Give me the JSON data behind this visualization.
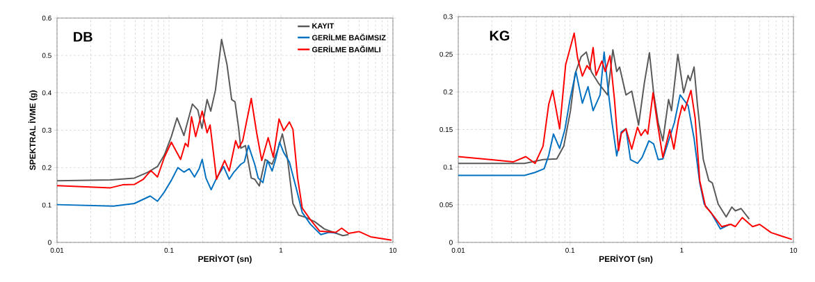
{
  "chart_data": [
    {
      "type": "line",
      "title": "DB",
      "xlabel": "PERİYOT (sn)",
      "ylabel": "SPEKTRAL İVME (g)",
      "log": "x",
      "grid": true,
      "legend": "top right",
      "xlim": [
        0.01,
        10
      ],
      "xticks": [
        0.01,
        0.1,
        1,
        10
      ],
      "ylim": [
        0,
        0.6
      ],
      "yticks": [
        0,
        0.1,
        0.2,
        0.3,
        0.4,
        0.5,
        0.6
      ],
      "series": [
        {
          "name": "KAYIT",
          "color": "#595959",
          "x": [
            0.01,
            0.03,
            0.049,
            0.065,
            0.079,
            0.091,
            0.105,
            0.118,
            0.136,
            0.162,
            0.181,
            0.197,
            0.219,
            0.236,
            0.26,
            0.295,
            0.33,
            0.363,
            0.389,
            0.418,
            0.438,
            0.482,
            0.543,
            0.583,
            0.641,
            0.724,
            0.834,
            0.931,
            1.03,
            1.14,
            1.28,
            1.44,
            1.66,
            2.01,
            2.44,
            2.95,
            3.57,
            4.02
          ],
          "values": [
            0.165,
            0.167,
            0.172,
            0.188,
            0.203,
            0.234,
            0.283,
            0.333,
            0.286,
            0.37,
            0.354,
            0.305,
            0.382,
            0.351,
            0.407,
            0.543,
            0.475,
            0.382,
            0.376,
            0.308,
            0.252,
            0.259,
            0.172,
            0.169,
            0.151,
            0.222,
            0.209,
            0.246,
            0.29,
            0.228,
            0.104,
            0.073,
            0.067,
            0.055,
            0.036,
            0.027,
            0.018,
            0.021
          ]
        },
        {
          "name": "GERİLME BAĞIMSIZ",
          "color": "#0070c0",
          "x": [
            0.01,
            0.0319,
            0.049,
            0.068,
            0.079,
            0.091,
            0.105,
            0.12,
            0.136,
            0.152,
            0.169,
            0.186,
            0.198,
            0.214,
            0.238,
            0.266,
            0.307,
            0.345,
            0.38,
            0.438,
            0.471,
            0.513,
            0.583,
            0.627,
            0.69,
            0.759,
            0.834,
            0.895,
            0.972,
            1.06,
            1.19,
            1.38,
            1.55,
            1.83,
            2.27,
            2.68,
            3.16
          ],
          "values": [
            0.101,
            0.097,
            0.104,
            0.124,
            0.11,
            0.135,
            0.166,
            0.2,
            0.188,
            0.197,
            0.175,
            0.197,
            0.222,
            0.172,
            0.141,
            0.172,
            0.203,
            0.169,
            0.188,
            0.209,
            0.215,
            0.259,
            0.209,
            0.172,
            0.16,
            0.219,
            0.191,
            0.222,
            0.268,
            0.24,
            0.215,
            0.141,
            0.08,
            0.049,
            0.021,
            0.027,
            0.025
          ]
        },
        {
          "name": "GERİLME BAĞIMLI",
          "color": "#ff0000",
          "x": [
            0.01,
            0.03,
            0.0385,
            0.049,
            0.059,
            0.0689,
            0.079,
            0.091,
            0.105,
            0.127,
            0.14,
            0.148,
            0.159,
            0.173,
            0.198,
            0.219,
            0.233,
            0.266,
            0.314,
            0.345,
            0.394,
            0.418,
            0.455,
            0.543,
            0.607,
            0.674,
            0.769,
            0.855,
            0.962,
            1.06,
            1.19,
            1.28,
            1.41,
            1.55,
            1.83,
            2.22,
            3.09,
            3.49,
            4.02,
            4.99,
            6.32,
            9.73
          ],
          "values": [
            0.152,
            0.146,
            0.154,
            0.155,
            0.169,
            0.192,
            0.175,
            0.228,
            0.268,
            0.222,
            0.265,
            0.256,
            0.336,
            0.283,
            0.351,
            0.293,
            0.314,
            0.169,
            0.219,
            0.191,
            0.272,
            0.252,
            0.271,
            0.385,
            0.293,
            0.219,
            0.28,
            0.228,
            0.33,
            0.299,
            0.322,
            0.302,
            0.172,
            0.092,
            0.061,
            0.03,
            0.027,
            0.038,
            0.024,
            0.029,
            0.015,
            0.006
          ]
        }
      ]
    },
    {
      "type": "line",
      "title": "KG",
      "xlabel": "PERİYOT (sn)",
      "log": "x",
      "grid": true,
      "xlim": [
        0.01,
        10
      ],
      "xticks": [
        0.01,
        0.1,
        1,
        10
      ],
      "ylim": [
        0,
        0.3
      ],
      "yticks": [
        0,
        0.05,
        0.1,
        0.15,
        0.2,
        0.25,
        0.3
      ],
      "series": [
        {
          "color": "#595959",
          "x": [
            0.01,
            0.0393,
            0.0574,
            0.0762,
            0.088,
            0.101,
            0.111,
            0.126,
            0.14,
            0.155,
            0.179,
            0.217,
            0.242,
            0.262,
            0.278,
            0.317,
            0.357,
            0.411,
            0.463,
            0.514,
            0.56,
            0.616,
            0.678,
            0.763,
            0.81,
            0.923,
            1.04,
            1.14,
            1.19,
            1.29,
            1.38,
            1.56,
            1.75,
            1.88,
            2.12,
            2.5,
            2.81,
            3.02,
            3.4,
            4.02
          ],
          "values": [
            0.105,
            0.105,
            0.11,
            0.111,
            0.128,
            0.175,
            0.224,
            0.247,
            0.253,
            0.227,
            0.212,
            0.196,
            0.256,
            0.227,
            0.233,
            0.196,
            0.201,
            0.156,
            0.212,
            0.252,
            0.199,
            0.159,
            0.135,
            0.19,
            0.175,
            0.25,
            0.199,
            0.222,
            0.215,
            0.233,
            0.184,
            0.11,
            0.082,
            0.079,
            0.051,
            0.034,
            0.047,
            0.042,
            0.045,
            0.031
          ]
        },
        {
          "color": "#0070c0",
          "x": [
            0.01,
            0.0393,
            0.0487,
            0.0587,
            0.0646,
            0.0711,
            0.0808,
            0.09,
            0.1,
            0.113,
            0.129,
            0.145,
            0.161,
            0.186,
            0.202,
            0.222,
            0.238,
            0.262,
            0.288,
            0.317,
            0.348,
            0.402,
            0.442,
            0.509,
            0.56,
            0.616,
            0.678,
            0.763,
            0.859,
            0.967,
            1.14,
            1.29,
            1.45,
            1.59,
            1.84,
            2.22,
            2.68
          ],
          "values": [
            0.089,
            0.089,
            0.093,
            0.098,
            0.116,
            0.144,
            0.125,
            0.15,
            0.19,
            0.227,
            0.185,
            0.207,
            0.175,
            0.196,
            0.253,
            0.196,
            0.159,
            0.115,
            0.147,
            0.151,
            0.11,
            0.105,
            0.113,
            0.135,
            0.131,
            0.11,
            0.111,
            0.135,
            0.159,
            0.196,
            0.182,
            0.138,
            0.079,
            0.051,
            0.039,
            0.018,
            0.024
          ]
        },
        {
          "color": "#ff0000",
          "x": [
            0.01,
            0.0193,
            0.031,
            0.0402,
            0.0487,
            0.0574,
            0.0646,
            0.07,
            0.0808,
            0.0914,
            0.099,
            0.109,
            0.117,
            0.129,
            0.142,
            0.15,
            0.161,
            0.171,
            0.193,
            0.207,
            0.228,
            0.25,
            0.272,
            0.288,
            0.317,
            0.357,
            0.402,
            0.432,
            0.471,
            0.497,
            0.554,
            0.601,
            0.678,
            0.782,
            0.851,
            0.935,
            1.01,
            1.06,
            1.21,
            1.32,
            1.45,
            1.63,
            1.84,
            2.28,
            2.75,
            3.02,
            3.48,
            4.31,
            4.98,
            6.31,
            7.62,
            9.68
          ],
          "values": [
            0.114,
            0.11,
            0.107,
            0.114,
            0.105,
            0.128,
            0.184,
            0.202,
            0.151,
            0.236,
            0.255,
            0.278,
            0.245,
            0.221,
            0.235,
            0.23,
            0.259,
            0.222,
            0.241,
            0.227,
            0.248,
            0.19,
            0.122,
            0.145,
            0.151,
            0.124,
            0.153,
            0.142,
            0.15,
            0.144,
            0.199,
            0.162,
            0.113,
            0.15,
            0.124,
            0.162,
            0.182,
            0.175,
            0.202,
            0.165,
            0.082,
            0.048,
            0.039,
            0.021,
            0.024,
            0.021,
            0.033,
            0.021,
            0.024,
            0.013,
            0.009,
            0.004
          ]
        }
      ]
    }
  ]
}
